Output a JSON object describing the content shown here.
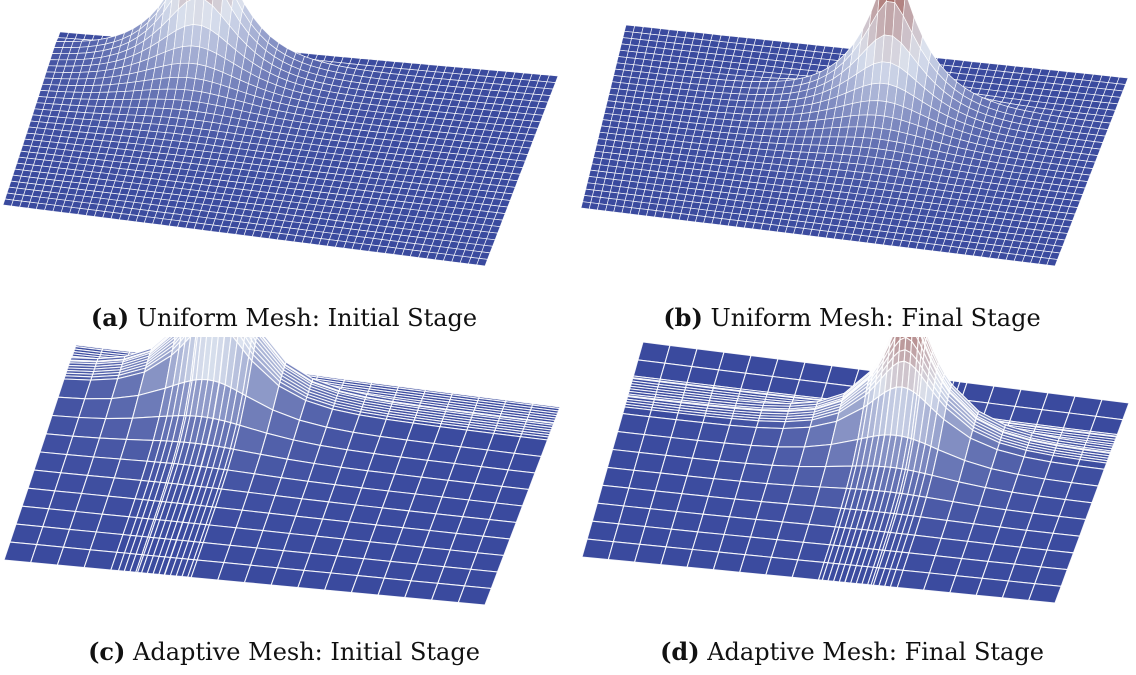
{
  "figure": {
    "panels": [
      {
        "id": "a",
        "tag": "(a)",
        "caption": "Uniform Mesh: Initial Stage",
        "mesh": "uniform",
        "stage": "initial"
      },
      {
        "id": "b",
        "tag": "(b)",
        "caption": "Uniform Mesh: Final Stage",
        "mesh": "uniform",
        "stage": "final"
      },
      {
        "id": "c",
        "tag": "(c)",
        "caption": "Adaptive Mesh: Initial Stage",
        "mesh": "adaptive",
        "stage": "initial"
      },
      {
        "id": "d",
        "tag": "(d)",
        "caption": "Adaptive Mesh: Final Stage",
        "mesh": "adaptive",
        "stage": "final"
      }
    ],
    "colors": {
      "surface_base": "#3A4A9E",
      "surface_mid": "#DCE3EF",
      "surface_peak": "#8B2A1C",
      "mesh_lines": "#FFFFFF"
    }
  }
}
